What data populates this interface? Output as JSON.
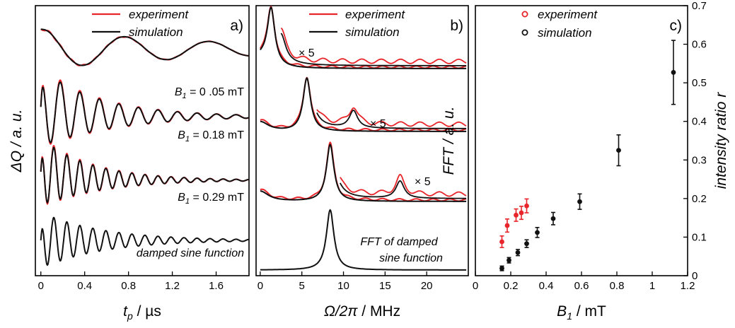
{
  "colors": {
    "experiment": "#e8252a",
    "simulation": "#111111"
  },
  "chart_data": [
    {
      "type": "line",
      "panel_label": "a)",
      "xlabel_sym": "t",
      "xlabel_sub": "p",
      "xlabel_unit": " / µs",
      "ylabel": "ΔQ / a. u.",
      "xlim": [
        -0.05,
        1.9
      ],
      "x_ticks": [
        0,
        0.4,
        0.8,
        1.2,
        1.6
      ],
      "x_tick_labels": [
        "0",
        "0.4",
        "0.8",
        "1.2",
        "1.6"
      ],
      "legend": [
        "experiment",
        "simulation"
      ],
      "traces": [
        {
          "baseline": 0.5,
          "amp": 0.43,
          "freq": 1.3,
          "damp": 0.6,
          "label_sym": "B",
          "label_sub": "1",
          "label_val": " = 0 .05 mT",
          "series": [
            "experiment",
            "simulation"
          ]
        },
        {
          "baseline": 0.0,
          "amp": 0.28,
          "freq": 5.6,
          "damp": 1.7,
          "label_sym": "B",
          "label_sub": "1",
          "label_val": " = 0.18 mT",
          "series": [
            "experiment",
            "simulation"
          ]
        },
        {
          "baseline": 0.0,
          "amp": 0.25,
          "freq": 8.4,
          "damp": 2.0,
          "label_sym": "B",
          "label_sub": "1",
          "label_val": " = 0.29 mT",
          "series": [
            "experiment",
            "simulation"
          ]
        },
        {
          "baseline": 0.0,
          "amp": 0.3,
          "freq": 8.4,
          "damp": 1.8,
          "label_val": "damped sine function",
          "series": [
            "simulation"
          ]
        }
      ]
    },
    {
      "type": "line",
      "panel_label": "b)",
      "xlabel": "Ω/2π",
      "xlabel_unit": " / MHz",
      "ylabel": "FFT / a. u.",
      "xlim": [
        -0.5,
        25
      ],
      "x_ticks": [
        0,
        5,
        10,
        15,
        20
      ],
      "x_tick_labels": [
        "0",
        "5",
        "10",
        "15",
        "20"
      ],
      "legend": [
        "experiment",
        "simulation"
      ],
      "traces": [
        {
          "peak": 1.3,
          "multiplier": "× 5"
        },
        {
          "peak": 5.6,
          "multiplier": "× 5"
        },
        {
          "peak": 8.4,
          "multiplier": "× 5"
        },
        {
          "peak": 8.4,
          "label_line1": "FFT of damped",
          "label_line2": "sine function"
        }
      ]
    },
    {
      "type": "scatter",
      "panel_label": "c)",
      "xlabel_sym": "B",
      "xlabel_sub": "1",
      "xlabel_unit": " / mT",
      "ylabel": "intensity ratio r",
      "xlim": [
        0,
        1.2
      ],
      "ylim": [
        0,
        0.7
      ],
      "x_ticks": [
        0,
        0.2,
        0.4,
        0.6,
        0.8,
        1.0,
        1.2
      ],
      "x_tick_labels": [
        "0",
        "0.2",
        "0.4",
        "0.6",
        "0.8",
        "1",
        "1.2"
      ],
      "y_ticks": [
        0,
        0.1,
        0.2,
        0.3,
        0.4,
        0.5,
        0.6,
        0.7
      ],
      "y_tick_labels": [
        "0",
        "0.1",
        "0.2",
        "0.3",
        "0.4",
        "0.5",
        "0.6",
        "0.7"
      ],
      "series": [
        {
          "name": "experiment",
          "x": [
            0.15,
            0.18,
            0.23,
            0.26,
            0.29
          ],
          "y": [
            0.088,
            0.13,
            0.157,
            0.163,
            0.181
          ],
          "err": [
            0.015,
            0.017,
            0.016,
            0.017,
            0.018
          ]
        },
        {
          "name": "simulation",
          "x": [
            0.15,
            0.19,
            0.24,
            0.29,
            0.35,
            0.44,
            0.59,
            0.81,
            1.12
          ],
          "y": [
            0.019,
            0.04,
            0.06,
            0.083,
            0.112,
            0.148,
            0.192,
            0.325,
            0.527
          ],
          "err": [
            0.006,
            0.007,
            0.008,
            0.01,
            0.013,
            0.016,
            0.02,
            0.04,
            0.083
          ]
        }
      ]
    }
  ]
}
